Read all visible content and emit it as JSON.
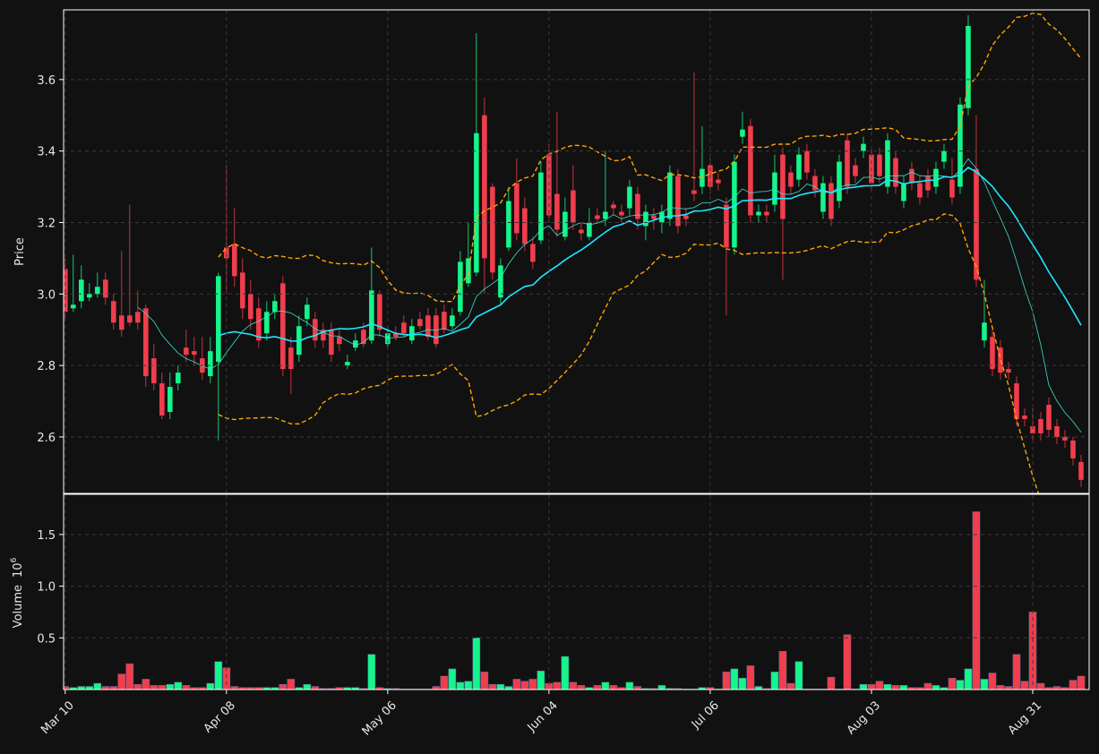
{
  "chart_data": {
    "type": "candlestick",
    "price_label": "Price",
    "volume_label": "Volume",
    "volume_scale": {
      "base": "10",
      "exponent": "6"
    },
    "xlim": [
      -0.2,
      127
    ],
    "xticks": [
      {
        "value": 0,
        "label": "Mar 10"
      },
      {
        "value": 20,
        "label": "Apr 08"
      },
      {
        "value": 40,
        "label": "May 06"
      },
      {
        "value": 60,
        "label": "Jun 04"
      },
      {
        "value": 80,
        "label": "Jul 06"
      },
      {
        "value": 100,
        "label": "Aug 03"
      },
      {
        "value": 120,
        "label": "Aug 31"
      }
    ],
    "ylim": [
      2.442,
      3.795
    ],
    "yticks": [
      2.6,
      2.8,
      {
        "value": 3,
        "label": "3.0"
      },
      3.2,
      3.4,
      3.6
    ],
    "volume_ylim": [
      0,
      1.88
    ],
    "volume_yticks": [
      0.5,
      {
        "value": 1,
        "label": "1.0"
      },
      1.5
    ],
    "grid": true,
    "up_color": "#14f58a",
    "down_color": "#f23d4c",
    "moving_averages": [
      {
        "period": 10,
        "color": "#3fe0d0",
        "width": 0.8
      },
      {
        "period": 20,
        "color": "#1ee8ff",
        "width": 1.6
      }
    ],
    "bollinger": {
      "period": 20,
      "std": 2,
      "color": "#ffa500"
    },
    "open": [
      3.07,
      2.96,
      2.98,
      2.99,
      3.0,
      3.04,
      2.98,
      2.94,
      2.94,
      2.95,
      2.96,
      2.82,
      2.75,
      2.67,
      2.75,
      2.85,
      2.84,
      2.82,
      2.77,
      2.81,
      3.13,
      3.14,
      3.06,
      3.0,
      2.96,
      2.89,
      2.95,
      3.03,
      2.85,
      2.83,
      2.93,
      2.93,
      2.9,
      2.9,
      2.88,
      2.8,
      2.85,
      2.9,
      2.87,
      3.0,
      2.86,
      2.89,
      2.92,
      2.87,
      2.93,
      2.94,
      2.94,
      2.95,
      2.91,
      2.95,
      3.03,
      3.06,
      3.5,
      3.3,
      2.99,
      3.13,
      3.31,
      3.24,
      3.14,
      3.15,
      3.39,
      3.28,
      3.16,
      3.29,
      3.18,
      3.16,
      3.22,
      3.21,
      3.25,
      3.23,
      3.24,
      3.28,
      3.19,
      3.22,
      3.2,
      3.21,
      3.33,
      3.22,
      3.29,
      3.3,
      3.36,
      3.32,
      3.25,
      3.13,
      3.44,
      3.47,
      3.22,
      3.23,
      3.25,
      3.39,
      3.34,
      3.32,
      3.4,
      3.33,
      3.23,
      3.31,
      3.26,
      3.43,
      3.36,
      3.4,
      3.39,
      3.39,
      3.3,
      3.38,
      3.26,
      3.35,
      3.31,
      3.33,
      3.3,
      3.37,
      3.32,
      3.3,
      3.52,
      3.35,
      2.87,
      2.88,
      2.85,
      2.79,
      2.75,
      2.66,
      2.63,
      2.65,
      2.69,
      2.63,
      2.6,
      2.59,
      2.53
    ],
    "high": [
      3.1,
      3.11,
      3.08,
      3.03,
      3.06,
      3.06,
      3.0,
      3.12,
      3.25,
      3.01,
      2.97,
      2.86,
      2.78,
      2.78,
      2.8,
      2.9,
      2.88,
      2.88,
      2.88,
      3.06,
      3.36,
      3.24,
      3.1,
      3.04,
      2.99,
      2.98,
      3.0,
      3.05,
      2.88,
      2.94,
      2.99,
      2.95,
      2.92,
      2.92,
      2.9,
      2.83,
      2.89,
      2.92,
      3.13,
      3.01,
      2.91,
      2.91,
      2.94,
      2.93,
      2.95,
      2.96,
      2.96,
      2.97,
      2.96,
      3.12,
      3.2,
      3.73,
      3.55,
      3.31,
      3.1,
      3.3,
      3.38,
      3.27,
      3.16,
      3.37,
      3.42,
      3.51,
      3.27,
      3.36,
      3.2,
      3.24,
      3.24,
      3.4,
      3.26,
      3.25,
      3.32,
      3.3,
      3.25,
      3.24,
      3.25,
      3.36,
      3.35,
      3.24,
      3.62,
      3.47,
      3.38,
      3.34,
      3.27,
      3.39,
      3.51,
      3.49,
      3.25,
      3.25,
      3.39,
      3.41,
      3.36,
      3.41,
      3.42,
      3.35,
      3.33,
      3.33,
      3.39,
      3.45,
      3.38,
      3.44,
      3.41,
      3.41,
      3.45,
      3.4,
      3.33,
      3.37,
      3.33,
      3.35,
      3.37,
      3.42,
      3.38,
      3.55,
      3.78,
      3.5,
      3.04,
      2.9,
      2.87,
      2.81,
      2.77,
      2.68,
      2.68,
      2.67,
      2.71,
      2.65,
      2.62,
      2.6,
      2.55
    ],
    "low": [
      2.93,
      2.95,
      2.96,
      2.98,
      2.99,
      2.97,
      2.9,
      2.88,
      2.91,
      2.9,
      2.74,
      2.73,
      2.65,
      2.65,
      2.73,
      2.81,
      2.8,
      2.76,
      2.75,
      2.59,
      3.0,
      3.02,
      2.93,
      2.9,
      2.85,
      2.87,
      2.93,
      2.77,
      2.72,
      2.81,
      2.91,
      2.85,
      2.85,
      2.81,
      2.84,
      2.79,
      2.84,
      2.85,
      2.86,
      2.88,
      2.85,
      2.87,
      2.88,
      2.86,
      2.9,
      2.87,
      2.85,
      2.89,
      2.9,
      2.94,
      3.02,
      3.05,
      3.0,
      3.04,
      2.97,
      3.12,
      3.15,
      3.12,
      3.07,
      3.14,
      3.2,
      3.16,
      3.15,
      3.18,
      3.15,
      3.15,
      3.2,
      3.19,
      3.22,
      3.2,
      3.22,
      3.18,
      3.15,
      3.18,
      3.17,
      3.19,
      3.17,
      3.19,
      3.26,
      3.28,
      3.28,
      3.29,
      2.94,
      3.11,
      3.42,
      3.2,
      3.2,
      3.2,
      3.23,
      3.04,
      3.28,
      3.3,
      3.32,
      3.27,
      3.21,
      3.19,
      3.24,
      3.28,
      3.31,
      3.38,
      3.29,
      3.31,
      3.28,
      3.28,
      3.24,
      3.29,
      3.25,
      3.27,
      3.28,
      3.35,
      3.25,
      3.28,
      3.5,
      3.02,
      2.85,
      2.77,
      2.76,
      2.76,
      2.63,
      2.63,
      2.59,
      2.59,
      2.6,
      2.58,
      2.57,
      2.52,
      2.46
    ],
    "close": [
      2.95,
      2.97,
      3.04,
      3.0,
      3.02,
      2.99,
      2.92,
      2.9,
      2.92,
      2.92,
      2.77,
      2.75,
      2.66,
      2.74,
      2.78,
      2.83,
      2.83,
      2.78,
      2.84,
      3.05,
      3.1,
      3.05,
      2.96,
      2.93,
      2.87,
      2.95,
      2.98,
      2.79,
      2.79,
      2.91,
      2.97,
      2.87,
      2.87,
      2.83,
      2.86,
      2.81,
      2.87,
      2.86,
      3.01,
      2.9,
      2.89,
      2.88,
      2.89,
      2.91,
      2.91,
      2.88,
      2.86,
      2.9,
      2.94,
      3.09,
      3.1,
      3.45,
      3.1,
      3.06,
      3.08,
      3.26,
      3.17,
      3.14,
      3.09,
      3.34,
      3.22,
      3.18,
      3.23,
      3.2,
      3.17,
      3.2,
      3.21,
      3.23,
      3.24,
      3.22,
      3.3,
      3.21,
      3.23,
      3.21,
      3.23,
      3.34,
      3.19,
      3.21,
      3.28,
      3.35,
      3.3,
      3.31,
      3.13,
      3.37,
      3.46,
      3.22,
      3.23,
      3.22,
      3.34,
      3.21,
      3.3,
      3.39,
      3.34,
      3.29,
      3.31,
      3.21,
      3.37,
      3.3,
      3.33,
      3.42,
      3.31,
      3.33,
      3.43,
      3.3,
      3.31,
      3.31,
      3.27,
      3.29,
      3.35,
      3.4,
      3.27,
      3.53,
      3.75,
      3.04,
      2.92,
      2.79,
      2.78,
      2.78,
      2.65,
      2.65,
      2.61,
      2.61,
      2.62,
      2.6,
      2.59,
      2.54,
      2.48
    ],
    "volume": [
      0.03,
      0.02,
      0.03,
      0.03,
      0.06,
      0.03,
      0.03,
      0.15,
      0.25,
      0.05,
      0.1,
      0.04,
      0.04,
      0.05,
      0.07,
      0.04,
      0.02,
      0.02,
      0.06,
      0.27,
      0.21,
      0.03,
      0.02,
      0.02,
      0.02,
      0.02,
      0.02,
      0.05,
      0.1,
      0.02,
      0.05,
      0.03,
      0.01,
      0.01,
      0.02,
      0.02,
      0.02,
      0.01,
      0.34,
      0.02,
      0.01,
      0.01,
      0.005,
      0.005,
      0.005,
      0.005,
      0.03,
      0.13,
      0.2,
      0.07,
      0.08,
      0.5,
      0.17,
      0.05,
      0.05,
      0.03,
      0.1,
      0.08,
      0.1,
      0.18,
      0.06,
      0.07,
      0.32,
      0.07,
      0.04,
      0.02,
      0.04,
      0.07,
      0.04,
      0.02,
      0.07,
      0.03,
      0.01,
      0.01,
      0.04,
      0.01,
      0.01,
      0.005,
      0.005,
      0.02,
      0.02,
      0.005,
      0.17,
      0.2,
      0.11,
      0.23,
      0.03,
      0.01,
      0.17,
      0.37,
      0.06,
      0.27,
      0.005,
      0.005,
      0.005,
      0.12,
      0.005,
      0.53,
      0.005,
      0.05,
      0.05,
      0.08,
      0.05,
      0.04,
      0.04,
      0.02,
      0.02,
      0.06,
      0.04,
      0.02,
      0.11,
      0.09,
      0.2,
      1.72,
      0.1,
      0.16,
      0.04,
      0.03,
      0.34,
      0.08,
      0.75,
      0.06,
      0.02,
      0.03,
      0.02,
      0.09,
      0.13
    ]
  }
}
